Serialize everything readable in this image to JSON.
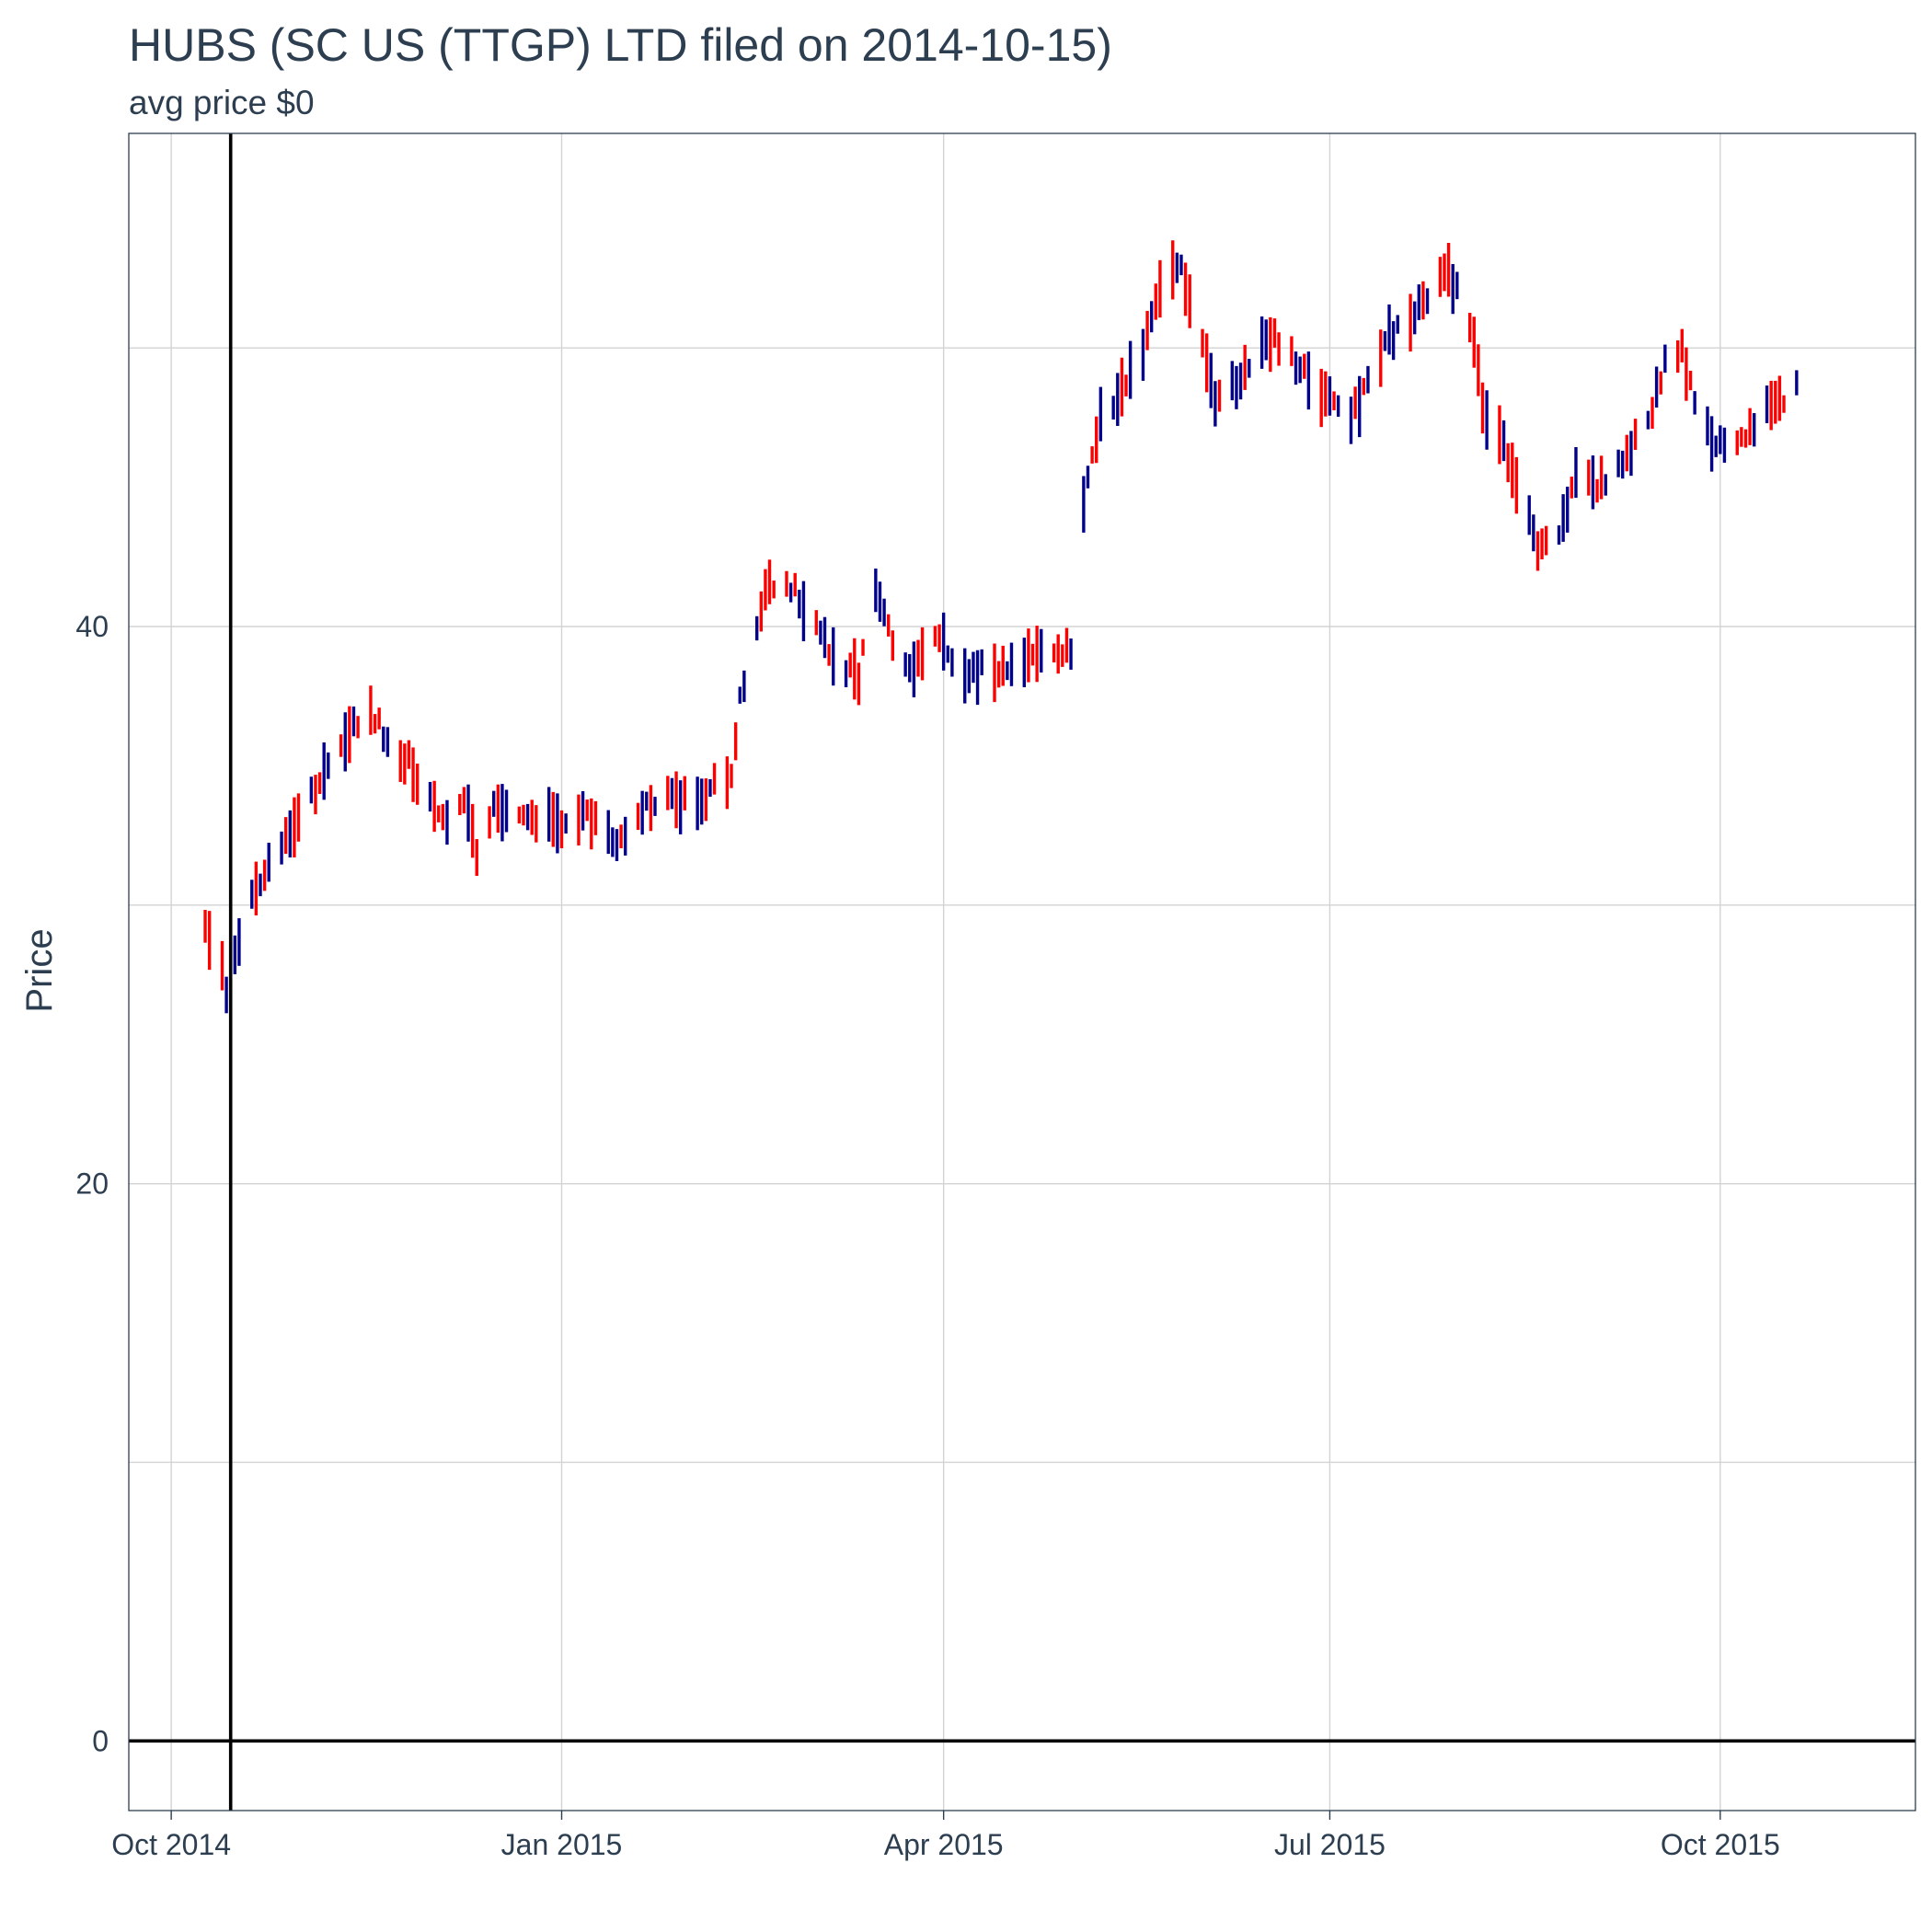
{
  "chart_data": {
    "type": "ohlc",
    "title": "HUBS (SC US (TTGP)  LTD filed on 2014-10-15)",
    "subtitle": "avg price $0",
    "xlabel": "",
    "ylabel": "Price",
    "ylim": [
      -2.5,
      57.7
    ],
    "xlim": [
      "2014-09-21",
      "2015-11-16"
    ],
    "y_ticks": [
      0,
      20,
      40
    ],
    "x_ticks": [
      {
        "date": "2014-10-01",
        "label": "Oct 2014"
      },
      {
        "date": "2015-01-01",
        "label": "Jan 2015"
      },
      {
        "date": "2015-04-01",
        "label": "Apr 2015"
      },
      {
        "date": "2015-07-01",
        "label": "Jul 2015"
      },
      {
        "date": "2015-10-01",
        "label": "Oct 2015"
      }
    ],
    "reference_lines": {
      "vertical_date": "2014-10-15",
      "horizontal_value": 0
    },
    "grid": true,
    "legend": "none",
    "colors": {
      "up": "#00008b",
      "down": "#ff0000",
      "reference": "#000000",
      "grid": "#d3d3d3",
      "text": "#2c3e50"
    },
    "anchors": [
      [
        "2014-10-09",
        29.5,
        "down"
      ],
      [
        "2014-10-13",
        28.0,
        "down"
      ],
      [
        "2014-10-14",
        27.0,
        "up"
      ],
      [
        "2014-10-16",
        28.5,
        "up"
      ],
      [
        "2014-10-21",
        30.8,
        "down"
      ],
      [
        "2014-10-24",
        31.5,
        "up"
      ],
      [
        "2014-10-29",
        32.5,
        "up"
      ],
      [
        "2014-11-03",
        34.0,
        "up"
      ],
      [
        "2014-11-07",
        35.2,
        "up"
      ],
      [
        "2014-11-12",
        36.2,
        "down"
      ],
      [
        "2014-11-17",
        37.0,
        "down"
      ],
      [
        "2014-11-21",
        36.0,
        "up"
      ],
      [
        "2014-11-27",
        35.0,
        "down"
      ],
      [
        "2014-12-02",
        33.5,
        "down"
      ],
      [
        "2014-12-05",
        33.0,
        "up"
      ],
      [
        "2014-12-09",
        34.0,
        "down"
      ],
      [
        "2014-12-12",
        32.0,
        "down"
      ],
      [
        "2014-12-16",
        33.5,
        "up"
      ],
      [
        "2014-12-22",
        33.5,
        "down"
      ],
      [
        "2014-12-30",
        33.0,
        "down"
      ],
      [
        "2015-01-07",
        33.3,
        "down"
      ],
      [
        "2015-01-14",
        32.5,
        "up"
      ],
      [
        "2015-01-21",
        33.5,
        "up"
      ],
      [
        "2015-01-28",
        34.0,
        "down"
      ],
      [
        "2015-02-02",
        33.5,
        "up"
      ],
      [
        "2015-02-06",
        34.3,
        "down"
      ],
      [
        "2015-02-10",
        34.5,
        "down"
      ],
      [
        "2015-02-12",
        37.5,
        "up"
      ],
      [
        "2015-02-18",
        41.5,
        "down"
      ],
      [
        "2015-02-24",
        41.5,
        "up"
      ],
      [
        "2015-03-02",
        40.0,
        "down"
      ],
      [
        "2015-03-06",
        39.0,
        "up"
      ],
      [
        "2015-03-12",
        38.2,
        "down"
      ],
      [
        "2015-03-16",
        41.5,
        "up"
      ],
      [
        "2015-03-20",
        39.5,
        "down"
      ],
      [
        "2015-03-25",
        38.5,
        "up"
      ],
      [
        "2015-03-30",
        39.8,
        "down"
      ],
      [
        "2015-04-06",
        38.5,
        "up"
      ],
      [
        "2015-04-14",
        38.5,
        "down"
      ],
      [
        "2015-04-20",
        39.0,
        "up"
      ],
      [
        "2015-04-27",
        39.0,
        "down"
      ],
      [
        "2015-05-01",
        39.2,
        "up"
      ],
      [
        "2015-05-04",
        44.5,
        "up"
      ],
      [
        "2015-05-08",
        47.5,
        "up"
      ],
      [
        "2015-05-13",
        48.5,
        "down"
      ],
      [
        "2015-05-18",
        50.0,
        "up"
      ],
      [
        "2015-05-22",
        52.5,
        "down"
      ],
      [
        "2015-05-27",
        53.0,
        "up"
      ],
      [
        "2015-06-01",
        50.0,
        "down"
      ],
      [
        "2015-06-04",
        48.0,
        "up"
      ],
      [
        "2015-06-10",
        49.0,
        "up"
      ],
      [
        "2015-06-17",
        50.5,
        "down"
      ],
      [
        "2015-06-23",
        49.5,
        "up"
      ],
      [
        "2015-06-29",
        48.5,
        "down"
      ],
      [
        "2015-07-06",
        47.5,
        "up"
      ],
      [
        "2015-07-10",
        49.0,
        "up"
      ],
      [
        "2015-07-15",
        50.5,
        "up"
      ],
      [
        "2015-07-20",
        51.0,
        "down"
      ],
      [
        "2015-07-24",
        52.0,
        "up"
      ],
      [
        "2015-07-28",
        53.0,
        "down"
      ],
      [
        "2015-08-03",
        51.0,
        "down"
      ],
      [
        "2015-08-06",
        48.0,
        "down"
      ],
      [
        "2015-08-11",
        46.5,
        "up"
      ],
      [
        "2015-08-15",
        45.0,
        "down"
      ],
      [
        "2015-08-19",
        43.0,
        "down"
      ],
      [
        "2015-08-24",
        43.5,
        "up"
      ],
      [
        "2015-08-28",
        45.5,
        "up"
      ],
      [
        "2015-09-02",
        45.0,
        "down"
      ],
      [
        "2015-09-08",
        46.0,
        "up"
      ],
      [
        "2015-09-14",
        47.5,
        "up"
      ],
      [
        "2015-09-18",
        49.5,
        "up"
      ],
      [
        "2015-09-22",
        50.0,
        "down"
      ],
      [
        "2015-09-26",
        47.5,
        "down"
      ],
      [
        "2015-10-01",
        46.5,
        "up"
      ],
      [
        "2015-10-07",
        47.0,
        "down"
      ],
      [
        "2015-10-12",
        48.0,
        "up"
      ],
      [
        "2015-10-16",
        48.0,
        "down"
      ],
      [
        "2015-10-19",
        48.8,
        "up"
      ]
    ],
    "ohlc_bars": []
  }
}
